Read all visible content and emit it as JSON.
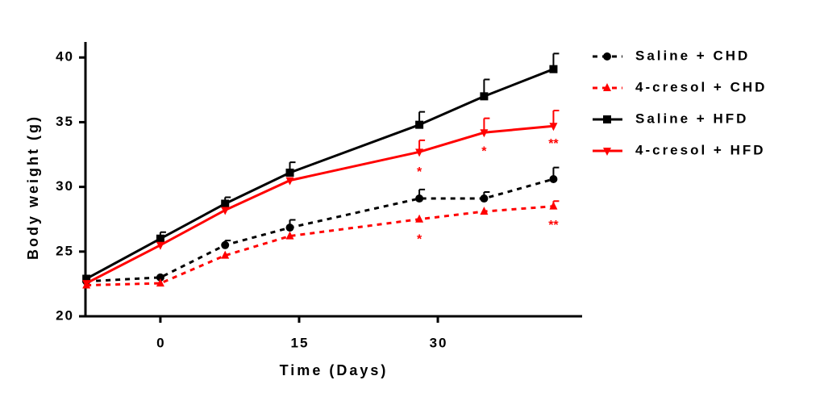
{
  "chart_data": {
    "type": "line",
    "x_label": "Time (Days)",
    "y_label": "Body weight (g)",
    "x": [
      -8,
      0,
      7,
      14,
      28,
      35,
      42.5
    ],
    "xlim": [
      -8.1,
      45.6
    ],
    "xticks": [
      0,
      15,
      30
    ],
    "ylim": [
      20,
      41.2
    ],
    "yticks": [
      20,
      25,
      30,
      35,
      40
    ],
    "series": [
      {
        "name": "Saline + CHD",
        "color": "#000000",
        "linestyle": "dashed",
        "marker": "circle",
        "values": [
          22.7,
          23.0,
          25.5,
          26.85,
          29.1,
          29.1,
          30.6
        ],
        "errors": [
          null,
          null,
          0.35,
          0.6,
          0.7,
          0.5,
          0.9
        ]
      },
      {
        "name": "4-cresol + CHD",
        "color": "#ff0000",
        "linestyle": "dashed",
        "marker": "triangle",
        "values": [
          22.4,
          22.55,
          24.7,
          26.2,
          27.5,
          28.1,
          28.5
        ],
        "errors": [
          null,
          null,
          null,
          null,
          null,
          null,
          0.4
        ]
      },
      {
        "name": "Saline + HFD",
        "color": "#000000",
        "linestyle": "solid",
        "marker": "square",
        "values": [
          22.9,
          26.0,
          28.7,
          31.1,
          34.8,
          37.0,
          39.1
        ],
        "errors": [
          null,
          0.5,
          0.5,
          0.8,
          1.0,
          1.3,
          1.2
        ]
      },
      {
        "name": "4-cresol + HFD",
        "color": "#ff0000",
        "linestyle": "solid",
        "marker": "triangle-down",
        "values": [
          22.55,
          25.5,
          28.2,
          30.5,
          32.7,
          34.2,
          34.7
        ],
        "errors": [
          null,
          null,
          null,
          null,
          0.9,
          1.1,
          1.2
        ]
      }
    ],
    "annotations": [
      {
        "text": "*",
        "x": 28,
        "y": 31.1,
        "color": "#ff0000"
      },
      {
        "text": "*",
        "x": 35,
        "y": 32.7,
        "color": "#ff0000"
      },
      {
        "text": "**",
        "x": 42.5,
        "y": 33.3,
        "color": "#ff0000"
      },
      {
        "text": "*",
        "x": 28,
        "y": 25.9,
        "color": "#ff0000"
      },
      {
        "text": "**",
        "x": 42.5,
        "y": 27.0,
        "color": "#ff0000"
      }
    ]
  }
}
